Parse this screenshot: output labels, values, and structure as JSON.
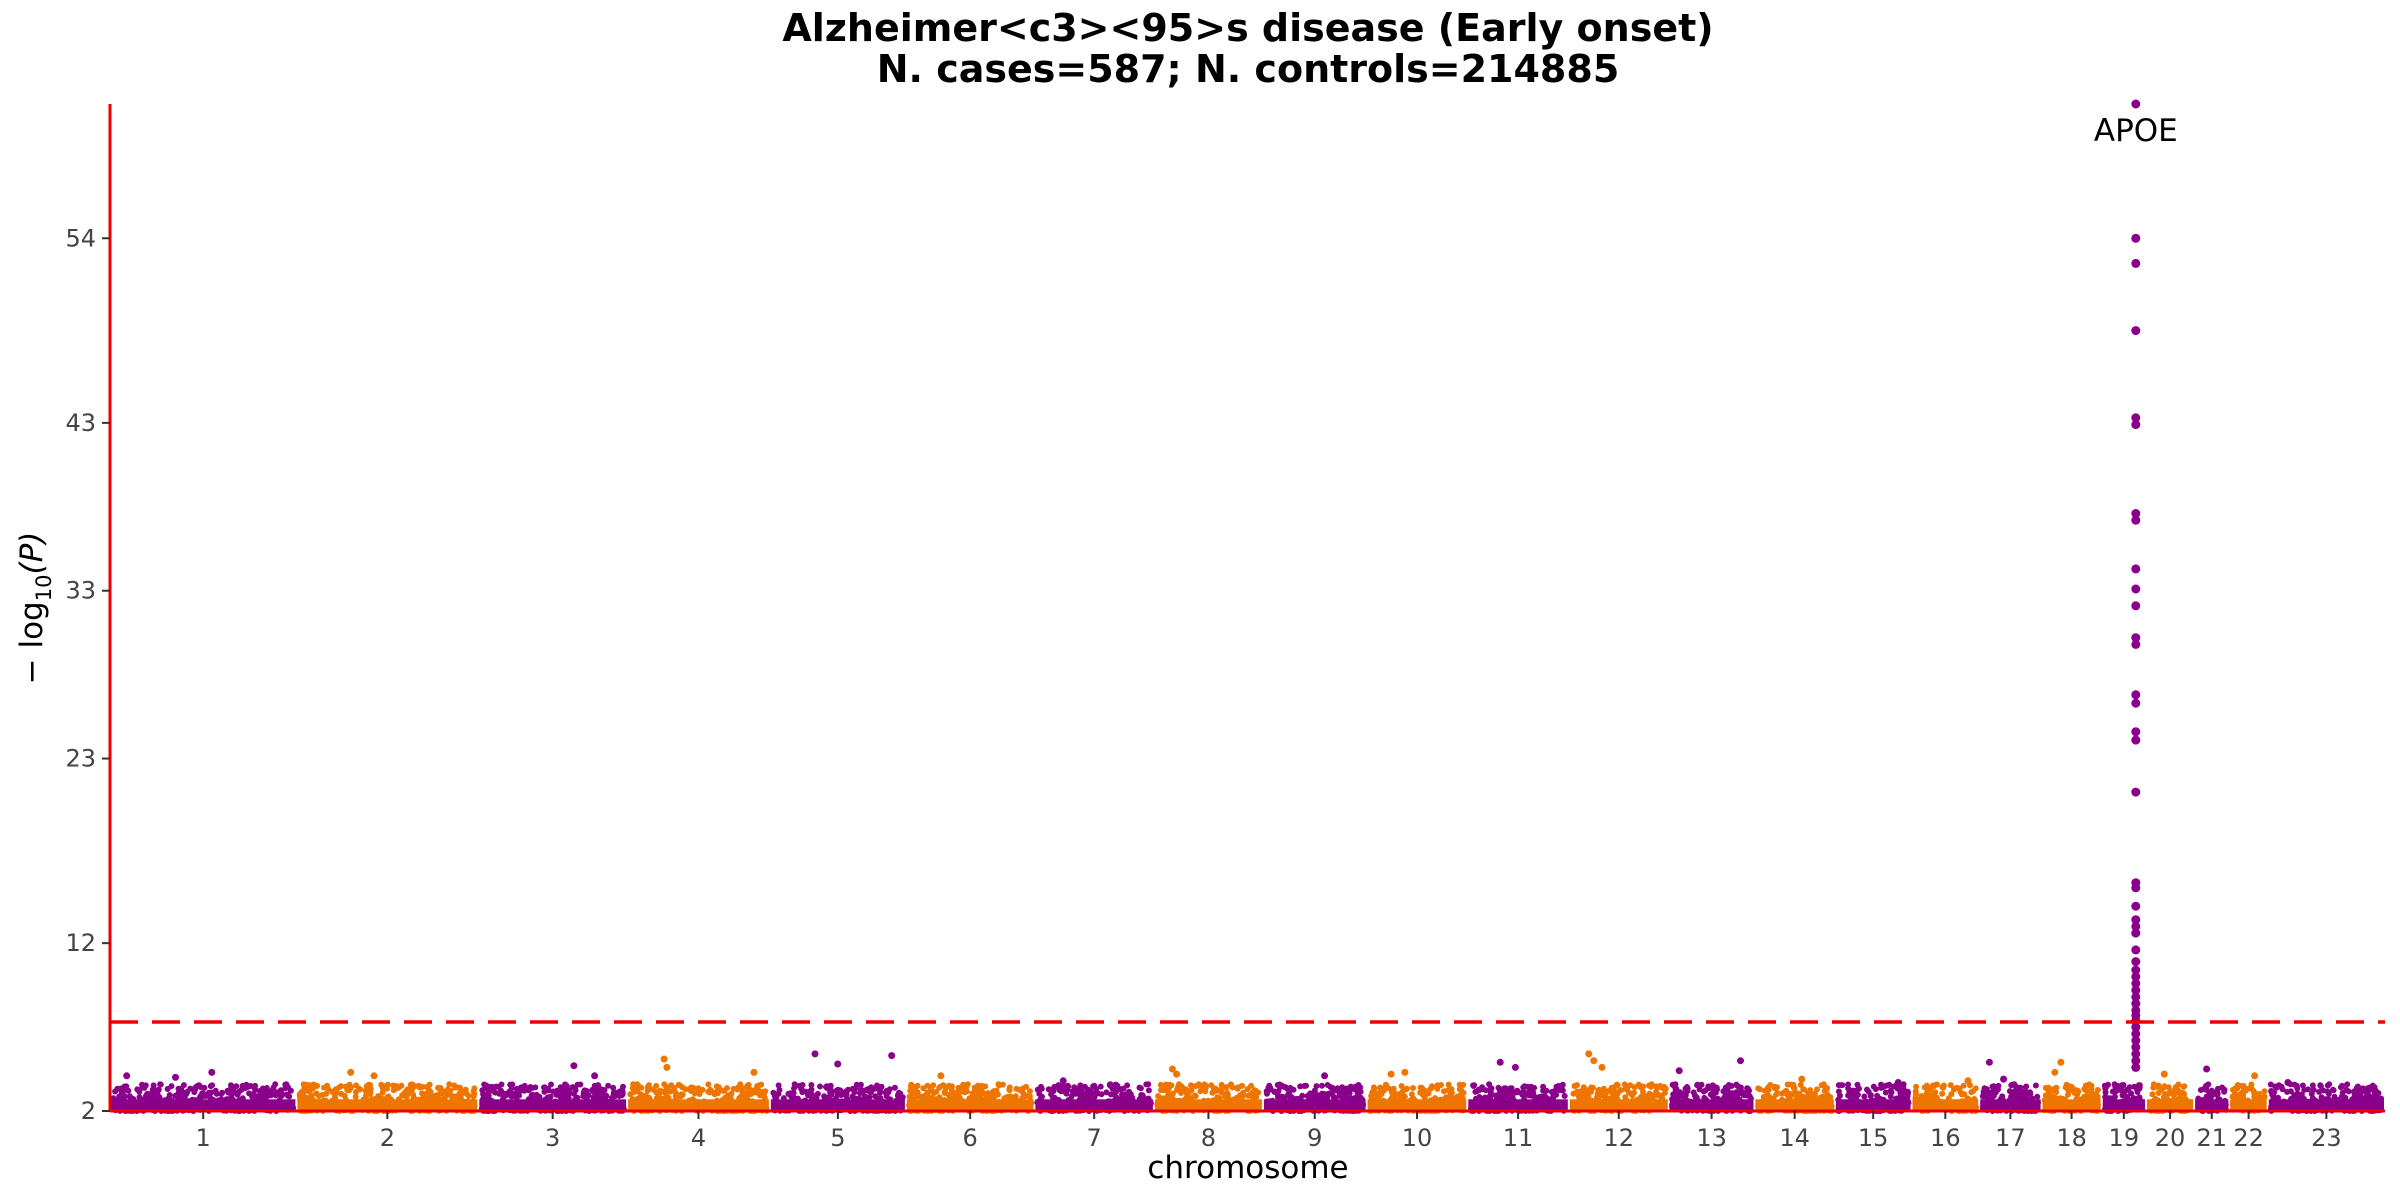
{
  "chart_data": {
    "type": "scatter",
    "subtype": "manhattan",
    "title": "Alzheimer<c3><95>s disease (Early onset)",
    "subtitle": "N. cases=587; N. controls=214885",
    "xlabel": "chromosome",
    "ylabel": "−log10(P)",
    "ylabel_parts": {
      "prefix": "− log",
      "sub": "10",
      "suffix": "(P)"
    },
    "ylim": [
      2,
      62
    ],
    "y_ticks": [
      2,
      12,
      23,
      33,
      43,
      54
    ],
    "significance_threshold": 7.3,
    "colors": {
      "odd": "#8B008B",
      "even": "#EE7600",
      "threshold": "#EE0000",
      "axis": "#EE0000"
    },
    "grid": false,
    "legend": "none",
    "chromosomes": [
      {
        "label": "1",
        "length": 248
      },
      {
        "label": "2",
        "length": 242
      },
      {
        "label": "3",
        "length": 198
      },
      {
        "label": "4",
        "length": 190
      },
      {
        "label": "5",
        "length": 181
      },
      {
        "label": "6",
        "length": 171
      },
      {
        "label": "7",
        "length": 159
      },
      {
        "label": "8",
        "length": 145
      },
      {
        "label": "9",
        "length": 138
      },
      {
        "label": "10",
        "length": 134
      },
      {
        "label": "11",
        "length": 135
      },
      {
        "label": "12",
        "length": 133
      },
      {
        "label": "13",
        "length": 114
      },
      {
        "label": "14",
        "length": 107
      },
      {
        "label": "15",
        "length": 102
      },
      {
        "label": "16",
        "length": 90
      },
      {
        "label": "17",
        "length": 83
      },
      {
        "label": "18",
        "length": 80
      },
      {
        "label": "19",
        "length": 59
      },
      {
        "label": "20",
        "length": 64
      },
      {
        "label": "21",
        "length": 47
      },
      {
        "label": "22",
        "length": 51
      },
      {
        "label": "23",
        "length": 156
      }
    ],
    "peaks": [
      {
        "chromosome": "1",
        "values": [
          4.3,
          4.1,
          4.0
        ]
      },
      {
        "chromosome": "2",
        "values": [
          4.3,
          4.1
        ]
      },
      {
        "chromosome": "3",
        "values": [
          4.7,
          4.1
        ]
      },
      {
        "chromosome": "4",
        "values": [
          5.1,
          4.6,
          4.3
        ]
      },
      {
        "chromosome": "5",
        "values": [
          5.4,
          5.3,
          4.8
        ]
      },
      {
        "chromosome": "6",
        "values": [
          4.1
        ]
      },
      {
        "chromosome": "7",
        "values": [
          3.8
        ]
      },
      {
        "chromosome": "8",
        "values": [
          4.5,
          4.2
        ]
      },
      {
        "chromosome": "9",
        "values": [
          4.1
        ]
      },
      {
        "chromosome": "10",
        "values": [
          4.3,
          4.2
        ]
      },
      {
        "chromosome": "11",
        "values": [
          4.9,
          4.6
        ]
      },
      {
        "chromosome": "12",
        "values": [
          5.4,
          5.0,
          4.6
        ]
      },
      {
        "chromosome": "13",
        "values": [
          5.0,
          4.4
        ]
      },
      {
        "chromosome": "14",
        "values": [
          3.9
        ]
      },
      {
        "chromosome": "15",
        "values": [
          3.7
        ]
      },
      {
        "chromosome": "16",
        "values": [
          3.8
        ]
      },
      {
        "chromosome": "17",
        "values": [
          4.9,
          3.9
        ]
      },
      {
        "chromosome": "18",
        "values": [
          4.9,
          4.3
        ]
      },
      {
        "chromosome": "19",
        "values": [
          62,
          54,
          52.5,
          48.5,
          43.3,
          42.9,
          37.6,
          37.2,
          34.3,
          33.1,
          32.1,
          30.2,
          29.8,
          26.8,
          26.3,
          24.6,
          24.1,
          21.0,
          15.6,
          15.3,
          14.2,
          13.4,
          13.0,
          12.6,
          11.6,
          10.9,
          10.4,
          10.0,
          9.6,
          9.2,
          8.8,
          8.4,
          8.0,
          7.7,
          7.4,
          7.0,
          6.6,
          6.2,
          5.8,
          5.4,
          5.0,
          4.6
        ]
      },
      {
        "chromosome": "20",
        "values": [
          4.2
        ]
      },
      {
        "chromosome": "21",
        "values": [
          4.5
        ]
      },
      {
        "chromosome": "22",
        "values": [
          4.1
        ]
      },
      {
        "chromosome": "23",
        "values": [
          3.7
        ]
      }
    ],
    "annotations": [
      {
        "text": "APOE",
        "chromosome": "19",
        "y": 62
      }
    ]
  }
}
